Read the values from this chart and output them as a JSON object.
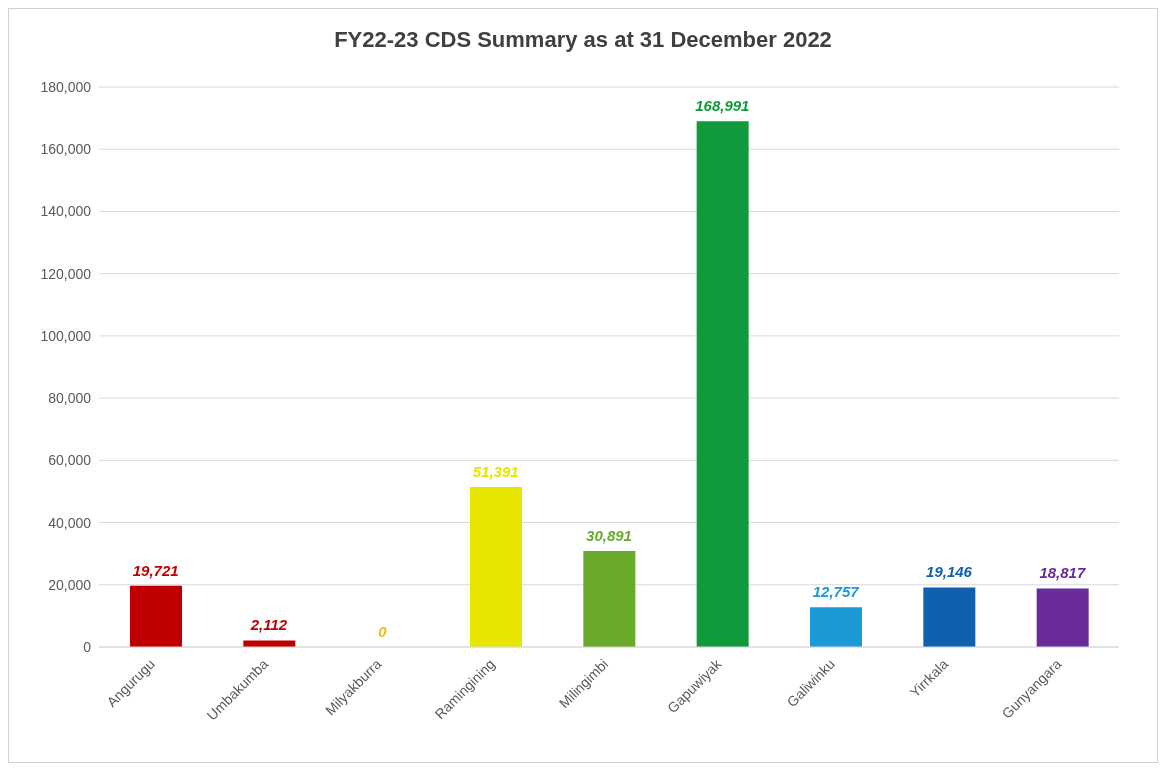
{
  "chart_data": {
    "type": "bar",
    "title": "FY22-23 CDS Summary as at 31 December 2022",
    "categories": [
      "Angurugu",
      "Umbakumba",
      "Milyakburra",
      "Ramingining",
      "Milingimbi",
      "Gapuwiyak",
      "Galiwinku",
      "Yirrkala",
      "Gunyangara"
    ],
    "values": [
      19721,
      2112,
      0,
      51391,
      30891,
      168991,
      12757,
      19146,
      18817
    ],
    "colors": [
      "#c00000",
      "#c00000",
      "#e8c020",
      "#e6e600",
      "#6aaa2a",
      "#119a3c",
      "#1a9ad6",
      "#1060b0",
      "#6a2a9a"
    ],
    "ylim": [
      0,
      180000
    ],
    "yticks": [
      {
        "value": 0,
        "label": "0"
      },
      {
        "value": 20000,
        "label": "20,000"
      },
      {
        "value": 40000,
        "label": "40,000"
      },
      {
        "value": 60000,
        "label": "60,000"
      },
      {
        "value": 80000,
        "label": "80,000"
      },
      {
        "value": 100000,
        "label": "100,000"
      },
      {
        "value": 120000,
        "label": "120,000"
      },
      {
        "value": 140000,
        "label": "140,000"
      },
      {
        "value": 160000,
        "label": "160,000"
      },
      {
        "value": 180000,
        "label": "180,000"
      }
    ],
    "value_labels": [
      "19,721",
      "2,112",
      "0",
      "51,391",
      "30,891",
      "168,991",
      "12,757",
      "19,146",
      "18,817"
    ],
    "grid": "y"
  }
}
